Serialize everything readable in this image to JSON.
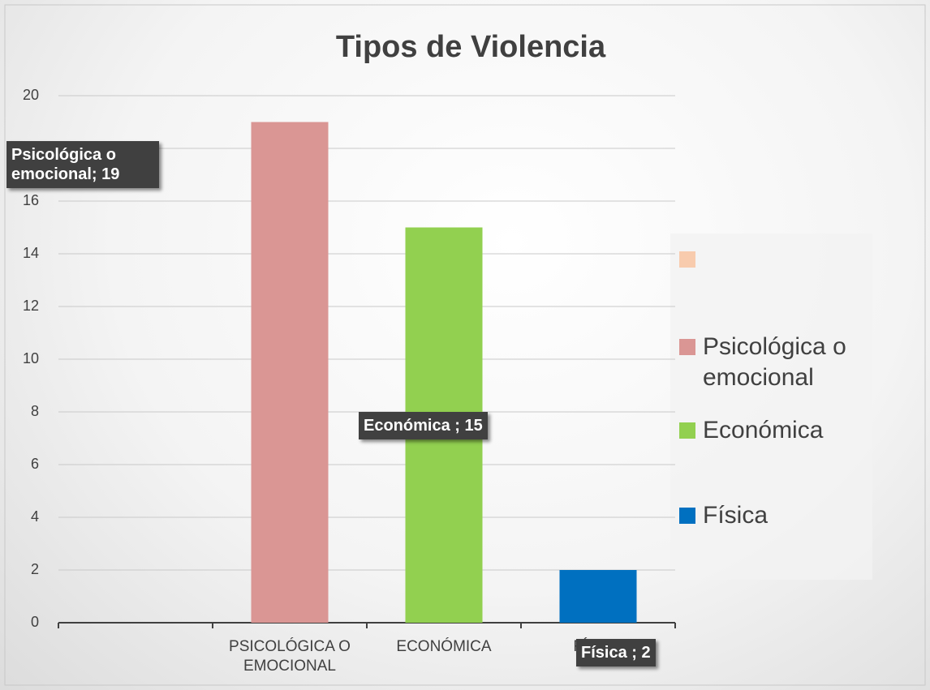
{
  "chart_data": {
    "type": "bar",
    "title": "Tipos de Violencia",
    "categories": [
      null,
      "PSICOLÓGICA O EMOCIONAL",
      "ECONÓMICA",
      "FÍSICA"
    ],
    "values": [
      null,
      19,
      15,
      2
    ],
    "value_labels": [
      null,
      "Psicológica o emocional; 19",
      "Económica ; 15",
      "Física ; 2"
    ],
    "colors": [
      "#f8cbad",
      "#da9694",
      "#92d050",
      "#0070c0"
    ],
    "legend_names": [
      null,
      "Psicológica o emocional",
      "Económica",
      "Física"
    ],
    "legend": "right",
    "ylim": [
      0,
      20
    ],
    "yticks": [
      0,
      2,
      4,
      6,
      8,
      10,
      12,
      14,
      16,
      18,
      20
    ],
    "grid": true
  }
}
